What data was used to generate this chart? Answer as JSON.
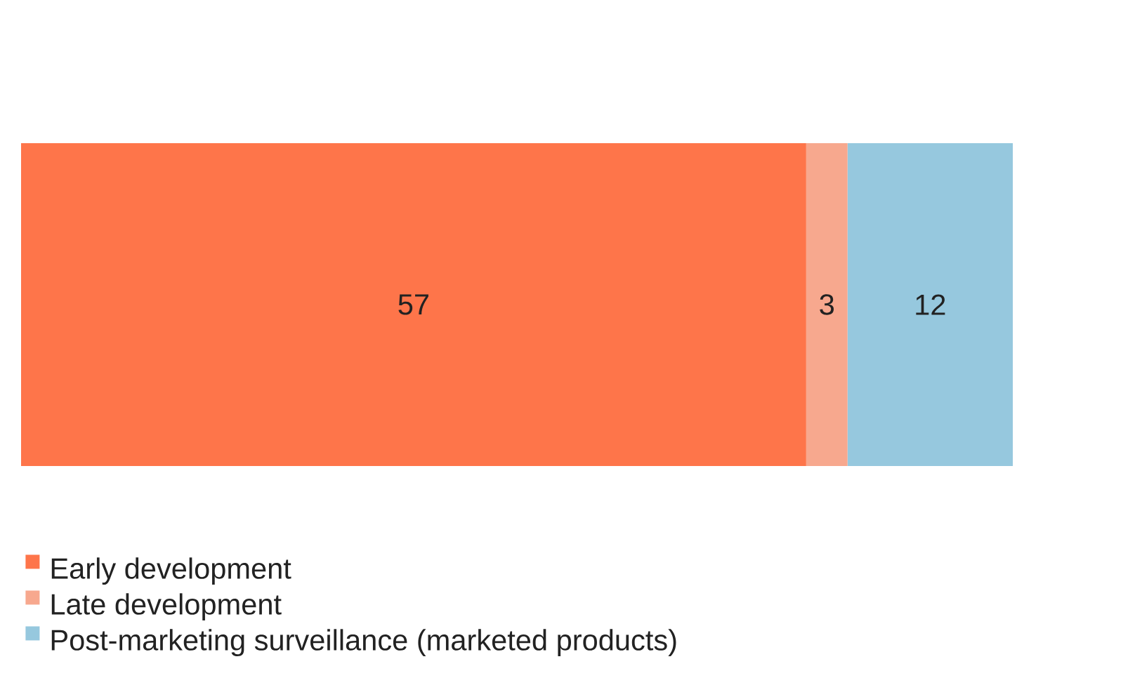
{
  "chart_data": {
    "type": "bar",
    "orientation": "horizontal",
    "stacked": true,
    "categories": [
      null
    ],
    "series": [
      {
        "name": "Early development",
        "color": "#fe754a",
        "values": [
          57
        ]
      },
      {
        "name": "Late development",
        "color": "#f7a88e",
        "values": [
          3
        ]
      },
      {
        "name": "Post-marketing surveillance (marketed products)",
        "color": "#96c8de",
        "values": [
          12
        ]
      }
    ],
    "data_labels": true,
    "legend": "bottom left",
    "tick_labels": false
  }
}
